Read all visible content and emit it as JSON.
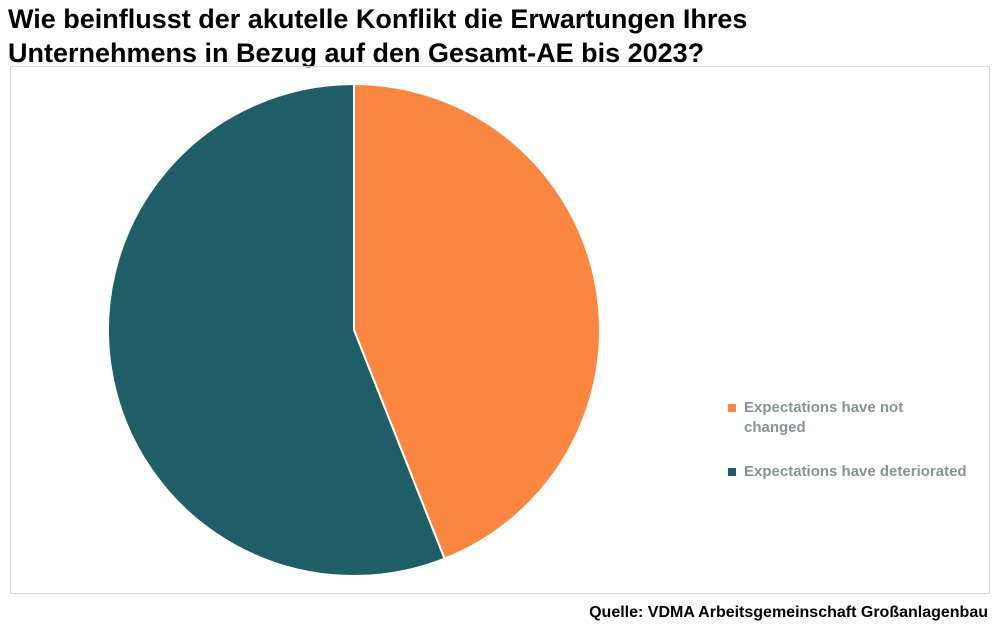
{
  "title_lines": [
    "Wie beinflusst der akutelle Konflikt die Erwartungen Ihres",
    "Unternehmens in Bezug auf den Gesamt-AE bis 2023?"
  ],
  "source": "Quelle: VDMA Arbeitsgemeinschaft Großanlagenbau",
  "chart_data": {
    "type": "pie",
    "title": "Wie beinflusst der akutelle Konflikt die Erwartungen Ihres Unternehmens in Bezug auf den Gesamt-AE bis 2023?",
    "legend_position": "bottom-right",
    "slices": [
      {
        "label": "Expectations have not changed",
        "value": 44,
        "color": "#fb8640"
      },
      {
        "label": "Expectations have deteriorated",
        "value": 56,
        "color": "#1f5d67"
      }
    ]
  }
}
